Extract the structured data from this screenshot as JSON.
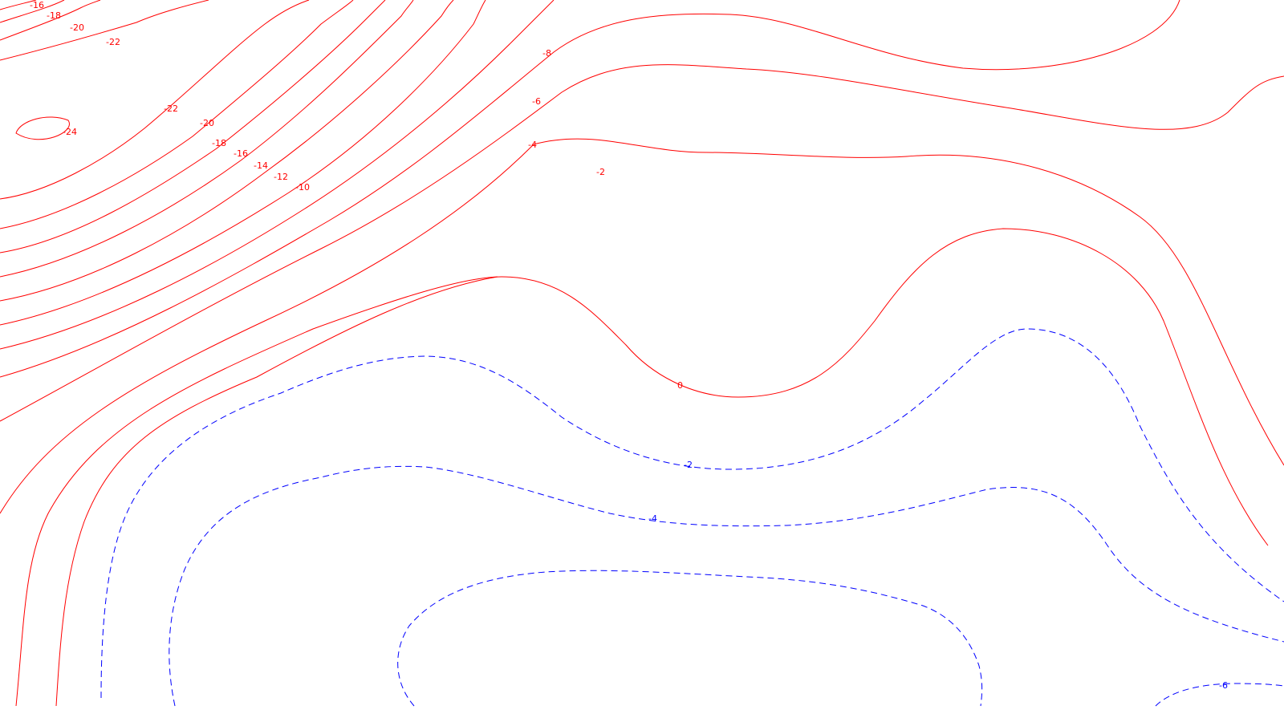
{
  "chart_data": {
    "type": "contour",
    "title": "",
    "xlabel": "",
    "ylabel": "",
    "contour_interval": 2,
    "positive_style": {
      "color": "#ff0000",
      "line": "solid"
    },
    "negative_style": {
      "color": "#0000ff",
      "line": "dashed"
    },
    "levels_labeled": [
      "-24",
      "-22",
      "-20",
      "-18",
      "-16",
      "-14",
      "-12",
      "-10",
      "-8",
      "-6",
      "-4",
      "-2",
      "0",
      "-2",
      "-4",
      "-6"
    ],
    "contours": [
      {
        "level": -24,
        "label": "-24",
        "sign": "pos"
      },
      {
        "level": -22,
        "label": "-22",
        "sign": "pos"
      },
      {
        "level": -22,
        "label": "-22",
        "sign": "pos"
      },
      {
        "level": -20,
        "label": "-20",
        "sign": "pos"
      },
      {
        "level": -20,
        "label": "-20",
        "sign": "pos"
      },
      {
        "level": -18,
        "label": "-18",
        "sign": "pos"
      },
      {
        "level": -18,
        "label": "-18",
        "sign": "pos"
      },
      {
        "level": -16,
        "label": "-16",
        "sign": "pos"
      },
      {
        "level": -16,
        "label": "-16",
        "sign": "pos"
      },
      {
        "level": -14,
        "label": "-14",
        "sign": "pos"
      },
      {
        "level": -12,
        "label": "-12",
        "sign": "pos"
      },
      {
        "level": -10,
        "label": "-10",
        "sign": "pos"
      },
      {
        "level": -8,
        "label": "-8",
        "sign": "pos"
      },
      {
        "level": -6,
        "label": "-6",
        "sign": "pos"
      },
      {
        "level": -4,
        "label": "-4",
        "sign": "pos"
      },
      {
        "level": -2,
        "label": "-2",
        "sign": "pos"
      },
      {
        "level": 0,
        "label": "0",
        "sign": "pos"
      },
      {
        "level": -2,
        "label": "-2",
        "sign": "neg"
      },
      {
        "level": -4,
        "label": "-4",
        "sign": "neg"
      },
      {
        "level": -6,
        "label": "-6",
        "sign": "neg"
      }
    ]
  }
}
